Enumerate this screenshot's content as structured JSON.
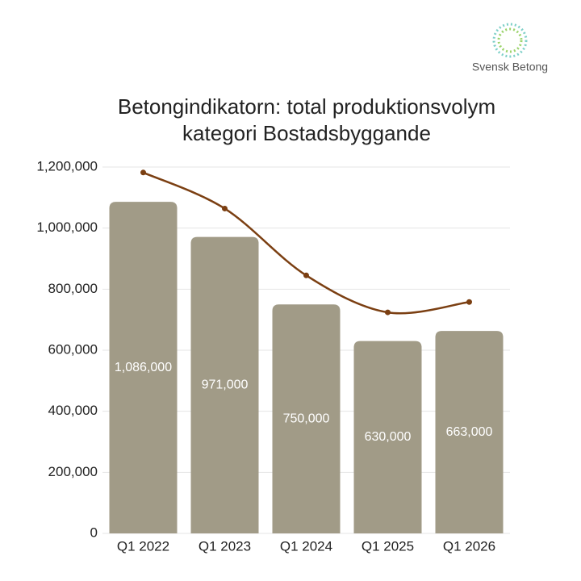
{
  "brand": "Svensk Betong",
  "chart_data": {
    "type": "bar",
    "title": "Betongindikatorn: total produktionsvolym kategori Bostadsbyggande",
    "categories": [
      "Q1 2022",
      "Q1 2023",
      "Q1 2024",
      "Q1 2025",
      "Q1 2026"
    ],
    "series": [
      {
        "type": "bar",
        "color": "#a19b87",
        "values": [
          1086000,
          971000,
          750000,
          630000,
          663000
        ],
        "value_labels": [
          "1,086,000",
          "971,000",
          "750,000",
          "630,000",
          "663,000"
        ]
      },
      {
        "type": "line",
        "color": "#7b3f12",
        "values": [
          1182000,
          1064000,
          845000,
          724000,
          758000
        ]
      }
    ],
    "ylim": [
      0,
      1200000
    ],
    "yticks": [
      0,
      {
        "value": 200000,
        "label": "200,000"
      },
      {
        "value": 400000,
        "label": "400,000"
      },
      {
        "value": 600000,
        "label": "600,000"
      },
      {
        "value": 800000,
        "label": "800,000"
      },
      {
        "value": 1000000,
        "label": "1,000,000"
      },
      {
        "value": 1200000,
        "label": "1,200,000"
      }
    ],
    "grid": true
  }
}
